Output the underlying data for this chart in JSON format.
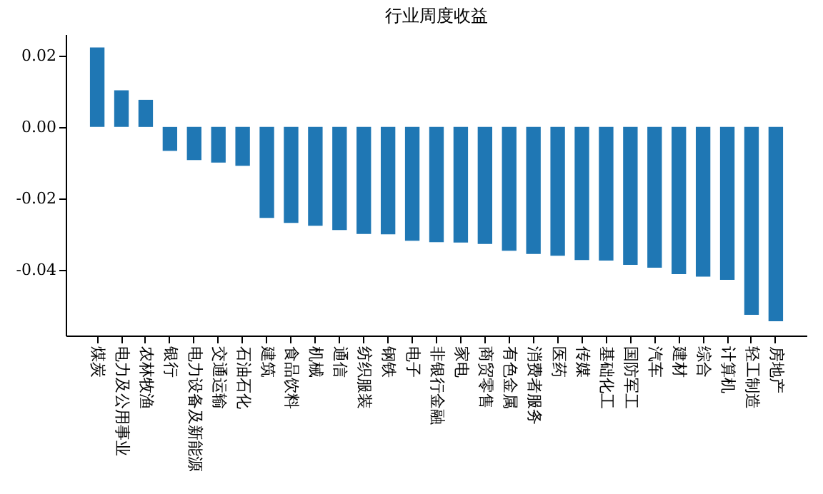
{
  "chart_data": {
    "type": "bar",
    "title": "行业周度收益",
    "categories": [
      "煤炭",
      "电力及公用事业",
      "农林牧渔",
      "银行",
      "电力设备及新能源",
      "交通运输",
      "石油石化",
      "建筑",
      "食品饮料",
      "机械",
      "通信",
      "纺织服装",
      "钢铁",
      "电子",
      "非银行金融",
      "家电",
      "商贸零售",
      "有色金属",
      "消费者服务",
      "医药",
      "传媒",
      "基础化工",
      "国防军工",
      "汽车",
      "建材",
      "综合",
      "计算机",
      "轻工制造",
      "房地产"
    ],
    "values": [
      0.0223,
      0.0103,
      0.0076,
      -0.0067,
      -0.0093,
      -0.01,
      -0.0109,
      -0.0255,
      -0.0269,
      -0.0277,
      -0.0289,
      -0.03,
      -0.0301,
      -0.0319,
      -0.0323,
      -0.0324,
      -0.0328,
      -0.0347,
      -0.0356,
      -0.0361,
      -0.0373,
      -0.0375,
      -0.0387,
      -0.0395,
      -0.0413,
      -0.042,
      -0.0429,
      -0.0527,
      -0.0545
    ],
    "color": "#1f77b4",
    "ylim": [
      -0.0585,
      0.026
    ],
    "yticks": [
      {
        "value": -0.04,
        "label": "-0.04"
      },
      {
        "value": -0.02,
        "label": "-0.02"
      },
      {
        "value": 0,
        "label": "0.00"
      },
      {
        "value": 0.02,
        "label": "0.02"
      }
    ],
    "grid": false
  }
}
